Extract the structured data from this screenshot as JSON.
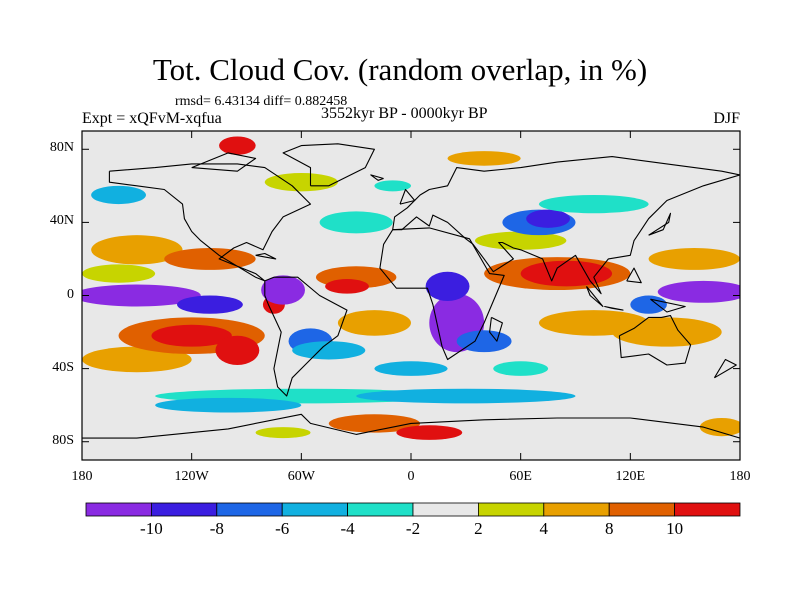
{
  "chart_data": {
    "type": "heatmap",
    "title": "Tot. Cloud Cov. (random overlap, in %)",
    "stats_text": "rmsd= 6.43134 diff= 0.882458",
    "experiment_text": "Expt = xQFvM-xqfua",
    "period_text": "3552kyr BP - 0000kyr BP",
    "season_text": "DJF",
    "projection": "cylindrical equidistant",
    "xlim": [
      -180,
      180
    ],
    "ylim": [
      -90,
      90
    ],
    "x_ticks": [
      {
        "value": -180,
        "label": "180"
      },
      {
        "value": -120,
        "label": "120W"
      },
      {
        "value": -60,
        "label": "60W"
      },
      {
        "value": 0,
        "label": "0"
      },
      {
        "value": 60,
        "label": "60E"
      },
      {
        "value": 120,
        "label": "120E"
      },
      {
        "value": 180,
        "label": "180"
      }
    ],
    "y_ticks": [
      {
        "value": 80,
        "label": "80N"
      },
      {
        "value": 40,
        "label": "40N"
      },
      {
        "value": 0,
        "label": "0"
      },
      {
        "value": -40,
        "label": "40S"
      },
      {
        "value": -80,
        "label": "80S"
      }
    ],
    "colorbar": {
      "levels": [
        "-10",
        "-8",
        "-6",
        "-4",
        "-2",
        "2",
        "4",
        "8",
        "10"
      ],
      "colors": [
        "#8a2be2",
        "#3b1ee0",
        "#1e66e6",
        "#11b0e0",
        "#1fe0c8",
        "#e8e8e8",
        "#c7d400",
        "#e8a000",
        "#e06000",
        "#e01010"
      ]
    },
    "features": [
      {
        "name": "tropical-pacific-negative",
        "lon_range": [
          -180,
          -95
        ],
        "lat_range": [
          -10,
          10
        ],
        "approx_value": -12
      },
      {
        "name": "south-pacific-positive",
        "lon_range": [
          -160,
          -80
        ],
        "lat_range": [
          -40,
          -10
        ],
        "approx_value": 11
      },
      {
        "name": "southern-africa-negative",
        "lon_range": [
          10,
          40
        ],
        "lat_range": [
          -35,
          5
        ],
        "approx_value": -11
      },
      {
        "name": "indian-ocean-positive",
        "lon_range": [
          50,
          110
        ],
        "lat_range": [
          0,
          20
        ],
        "approx_value": 10
      },
      {
        "name": "west-pacific-negative",
        "lon_range": [
          130,
          180
        ],
        "lat_range": [
          -5,
          10
        ],
        "approx_value": -11
      },
      {
        "name": "southern-ocean-negative-band",
        "lon_range": [
          -150,
          120
        ],
        "lat_range": [
          -60,
          -45
        ],
        "approx_value": -4
      },
      {
        "name": "antarctic-coast-positive",
        "lon_range": [
          -20,
          30
        ],
        "lat_range": [
          -82,
          -70
        ],
        "approx_value": 10
      }
    ]
  }
}
